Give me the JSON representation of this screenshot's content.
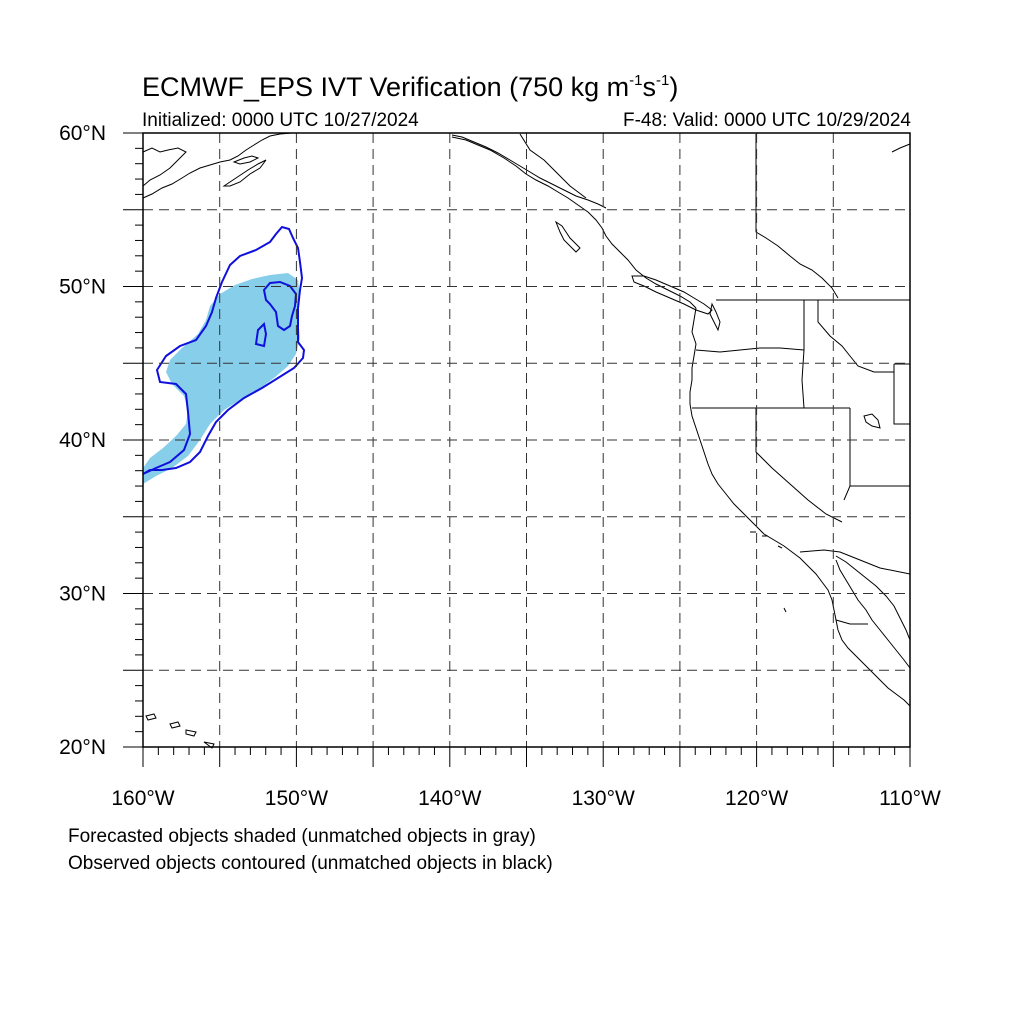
{
  "title": {
    "prefix": "ECMWF_EPS IVT Verification (750 kg m",
    "exp1": "-1",
    "mid": "s",
    "exp2": "-1",
    "suffix": ")"
  },
  "subtitle_left": "Initialized: 0000 UTC 10/27/2024",
  "subtitle_right": "F-48: Valid: 0000 UTC 10/29/2024",
  "footnotes": [
    "Forecasted objects shaded (unmatched objects in gray)",
    "Observed objects contoured (unmatched objects in black)"
  ],
  "map": {
    "lon_range": [
      -160,
      -110
    ],
    "lat_range": [
      20,
      60
    ],
    "lat_labels": [
      {
        "lat": 60,
        "text": "60°N"
      },
      {
        "lat": 50,
        "text": "50°N"
      },
      {
        "lat": 40,
        "text": "40°N"
      },
      {
        "lat": 30,
        "text": "30°N"
      },
      {
        "lat": 20,
        "text": "20°N"
      }
    ],
    "lon_labels": [
      {
        "lon": -160,
        "text": "160°W"
      },
      {
        "lon": -150,
        "text": "150°W"
      },
      {
        "lon": -140,
        "text": "140°W"
      },
      {
        "lon": -130,
        "text": "130°W"
      },
      {
        "lon": -120,
        "text": "120°W"
      },
      {
        "lon": -110,
        "text": "110°W"
      }
    ],
    "gridlines": "dashed every 5°",
    "colors": {
      "forecast_fill": "#87ceeb",
      "observed_contour": "#1010dd",
      "coastline": "#000000",
      "grid": "#000000"
    }
  }
}
